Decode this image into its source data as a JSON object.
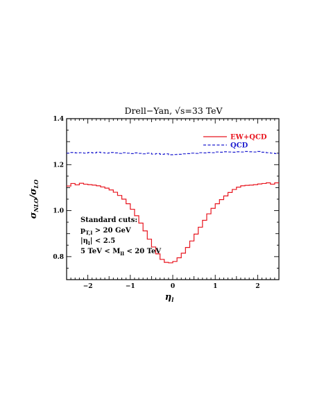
{
  "chart_data": {
    "type": "line",
    "title": "Drell−Yan, √s=33 TeV",
    "xlabel": "η",
    "xlabel_sub": "l",
    "ylabel": "σ",
    "ylabel_sub_num": "NLO",
    "ylabel_mid": "/σ",
    "ylabel_sub_den": "LO",
    "xlim": [
      -2.5,
      2.5
    ],
    "ylim": [
      0.7,
      1.4
    ],
    "xticks": [
      -2,
      -1,
      0,
      1,
      2
    ],
    "xtick_labels": [
      "−2",
      "−1",
      "0",
      "1",
      "2"
    ],
    "yticks": [
      0.8,
      1.0,
      1.2,
      1.4
    ],
    "ytick_labels": [
      "0.8",
      "1.0",
      "1.2",
      "1.4"
    ],
    "legend_position": "top-right",
    "annotation_lines": [
      {
        "parts": [
          {
            "t": "Standard cuts:"
          }
        ]
      },
      {
        "parts": [
          {
            "t": "p"
          },
          {
            "t": "T,l",
            "sub": true
          },
          {
            "t": " > 20 GeV"
          }
        ]
      },
      {
        "parts": [
          {
            "t": "|η"
          },
          {
            "t": "l",
            "sub": true
          },
          {
            "t": "| < 2.5"
          }
        ]
      },
      {
        "parts": [
          {
            "t": "5 TeV < M"
          },
          {
            "t": "ll",
            "sub": true
          },
          {
            "t": " < 20 TeV"
          }
        ]
      }
    ],
    "bin_edges": [
      -2.5,
      -2.4,
      -2.3,
      -2.2,
      -2.1,
      -2.0,
      -1.9,
      -1.8,
      -1.7,
      -1.6,
      -1.5,
      -1.4,
      -1.3,
      -1.2,
      -1.1,
      -1.0,
      -0.9,
      -0.8,
      -0.7,
      -0.6,
      -0.5,
      -0.4,
      -0.3,
      -0.2,
      -0.1,
      0.0,
      0.1,
      0.2,
      0.3,
      0.4,
      0.5,
      0.6,
      0.7,
      0.8,
      0.9,
      1.0,
      1.1,
      1.2,
      1.3,
      1.4,
      1.5,
      1.6,
      1.7,
      1.8,
      1.9,
      2.0,
      2.1,
      2.2,
      2.3,
      2.4,
      2.5
    ],
    "series": [
      {
        "name": "EW+QCD",
        "color": "#e8141e",
        "style": "solid",
        "values": [
          1.107,
          1.118,
          1.112,
          1.119,
          1.115,
          1.113,
          1.111,
          1.108,
          1.103,
          1.098,
          1.09,
          1.08,
          1.066,
          1.05,
          1.03,
          1.006,
          0.978,
          0.946,
          0.912,
          0.876,
          0.842,
          0.812,
          0.788,
          0.775,
          0.773,
          0.779,
          0.795,
          0.815,
          0.84,
          0.868,
          0.898,
          0.928,
          0.958,
          0.986,
          1.01,
          1.03,
          1.048,
          1.064,
          1.079,
          1.092,
          1.102,
          1.108,
          1.11,
          1.111,
          1.113,
          1.116,
          1.118,
          1.121,
          1.115,
          1.121
        ]
      },
      {
        "name": "QCD",
        "color": "#1c1ccf",
        "style": "dashed",
        "values": [
          1.25,
          1.253,
          1.251,
          1.252,
          1.25,
          1.253,
          1.251,
          1.254,
          1.252,
          1.25,
          1.253,
          1.251,
          1.249,
          1.252,
          1.25,
          1.248,
          1.251,
          1.249,
          1.247,
          1.25,
          1.246,
          1.248,
          1.245,
          1.247,
          1.243,
          1.244,
          1.245,
          1.247,
          1.248,
          1.25,
          1.249,
          1.252,
          1.251,
          1.253,
          1.252,
          1.255,
          1.254,
          1.256,
          1.255,
          1.254,
          1.256,
          1.255,
          1.257,
          1.256,
          1.255,
          1.257,
          1.254,
          1.252,
          1.25,
          1.248
        ]
      }
    ]
  }
}
